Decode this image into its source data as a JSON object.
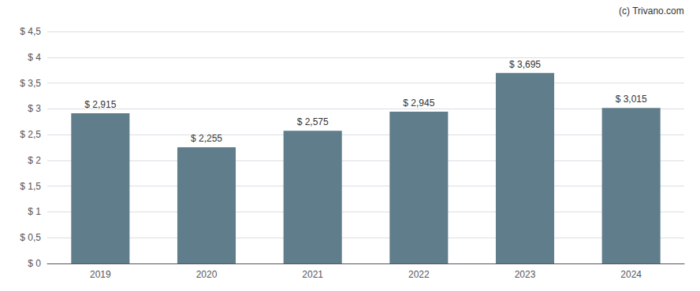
{
  "chart_data": {
    "type": "bar",
    "categories": [
      "2019",
      "2020",
      "2021",
      "2022",
      "2023",
      "2024"
    ],
    "values": [
      2.915,
      2.255,
      2.575,
      2.945,
      3.695,
      3.015
    ],
    "value_labels": [
      "$ 2,915",
      "$ 2,255",
      "$ 2,575",
      "$ 2,945",
      "$ 3,695",
      "$ 3,015"
    ],
    "data_labels": true,
    "color": "#607d8b",
    "ylim": [
      0,
      4.5
    ],
    "yticks": [
      {
        "value": 0,
        "label": "$ 0"
      },
      {
        "value": 0.5,
        "label": "$ 0,5"
      },
      {
        "value": 1.0,
        "label": "$ 1"
      },
      {
        "value": 1.5,
        "label": "$ 1,5"
      },
      {
        "value": 2.0,
        "label": "$ 2"
      },
      {
        "value": 2.5,
        "label": "$ 2,5"
      },
      {
        "value": 3.0,
        "label": "$ 3"
      },
      {
        "value": 3.5,
        "label": "$ 3,5"
      },
      {
        "value": 4.0,
        "label": "$ 4"
      },
      {
        "value": 4.5,
        "label": "$ 4,5"
      }
    ],
    "grid": true,
    "annotations": [
      "(c) Trivano.com"
    ]
  }
}
